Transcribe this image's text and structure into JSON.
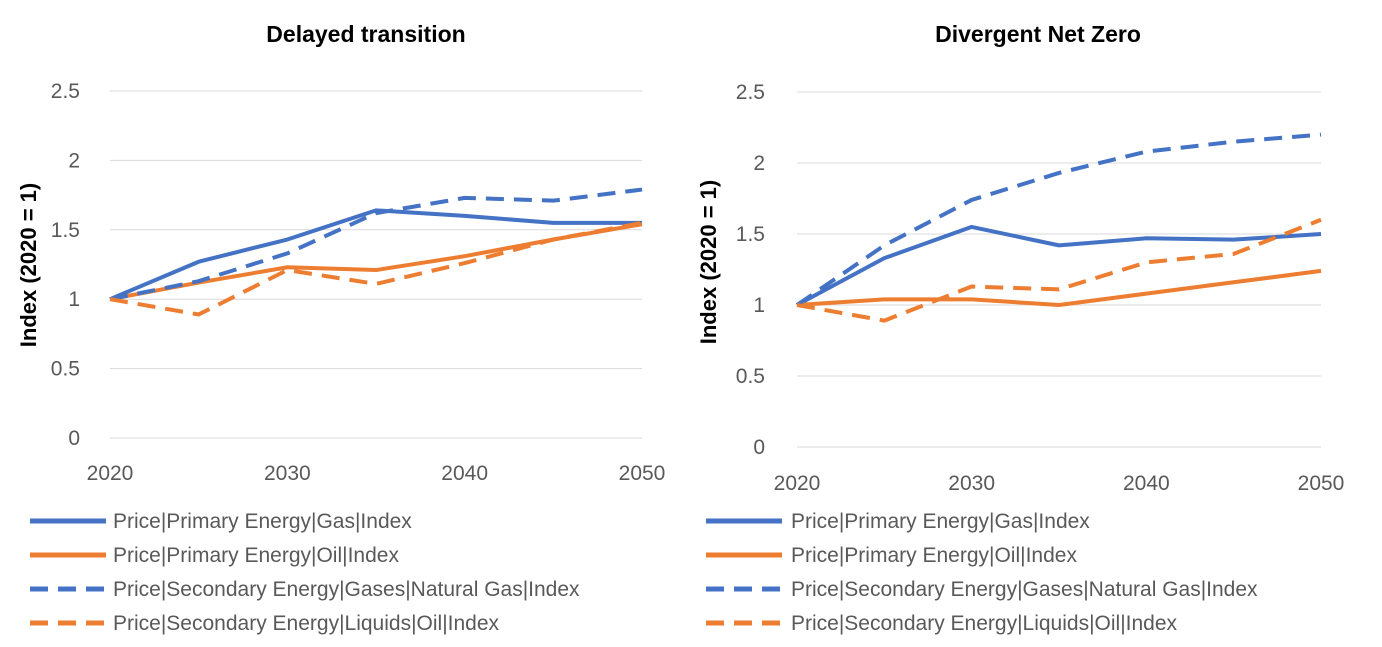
{
  "colors": {
    "blue": "#4472C4",
    "orange": "#ED7D31"
  },
  "chart_data": [
    {
      "type": "line",
      "title": "Delayed transition",
      "ylabel": "Index (2020 = 1)",
      "xlabel": "",
      "x": [
        2020,
        2025,
        2030,
        2035,
        2040,
        2045,
        2050
      ],
      "xticks": [
        "2020",
        "2030",
        "2040",
        "2050"
      ],
      "yticks": [
        "0",
        "0.5",
        "1",
        "1.5",
        "2",
        "2.5"
      ],
      "ylim": [
        0,
        2.5
      ],
      "grid": true,
      "legend_position": "bottom",
      "series": [
        {
          "name": "Price|Primary Energy|Gas|Index",
          "color": "blue",
          "dashed": false,
          "values": [
            1.0,
            1.27,
            1.43,
            1.64,
            1.6,
            1.55,
            1.55
          ]
        },
        {
          "name": "Price|Primary Energy|Oil|Index",
          "color": "orange",
          "dashed": false,
          "values": [
            1.0,
            1.12,
            1.23,
            1.21,
            1.31,
            1.43,
            1.54
          ]
        },
        {
          "name": "Price|Secondary Energy|Gases|Natural Gas|Index",
          "color": "blue",
          "dashed": true,
          "values": [
            1.0,
            1.13,
            1.33,
            1.62,
            1.73,
            1.71,
            1.79
          ]
        },
        {
          "name": "Price|Secondary Energy|Liquids|Oil|Index",
          "color": "orange",
          "dashed": true,
          "values": [
            1.0,
            0.89,
            1.21,
            1.11,
            1.26,
            1.43,
            1.55
          ]
        }
      ]
    },
    {
      "type": "line",
      "title": "Divergent Net Zero",
      "ylabel": "Index (2020 = 1)",
      "xlabel": "",
      "x": [
        2020,
        2025,
        2030,
        2035,
        2040,
        2045,
        2050
      ],
      "xticks": [
        "2020",
        "2030",
        "2040",
        "2050"
      ],
      "yticks": [
        "0",
        "0.5",
        "1",
        "1.5",
        "2",
        "2.5"
      ],
      "ylim": [
        0,
        2.5
      ],
      "grid": true,
      "legend_position": "bottom",
      "series": [
        {
          "name": "Price|Primary Energy|Gas|Index",
          "color": "blue",
          "dashed": false,
          "values": [
            1.0,
            1.33,
            1.55,
            1.42,
            1.47,
            1.46,
            1.5
          ]
        },
        {
          "name": "Price|Primary Energy|Oil|Index",
          "color": "orange",
          "dashed": false,
          "values": [
            1.0,
            1.04,
            1.04,
            1.0,
            1.08,
            1.16,
            1.24
          ]
        },
        {
          "name": "Price|Secondary Energy|Gases|Natural Gas|Index",
          "color": "blue",
          "dashed": true,
          "values": [
            1.0,
            1.42,
            1.74,
            1.93,
            2.08,
            2.15,
            2.2
          ]
        },
        {
          "name": "Price|Secondary Energy|Liquids|Oil|Index",
          "color": "orange",
          "dashed": true,
          "values": [
            1.0,
            0.89,
            1.13,
            1.11,
            1.3,
            1.36,
            1.6
          ]
        }
      ]
    }
  ]
}
